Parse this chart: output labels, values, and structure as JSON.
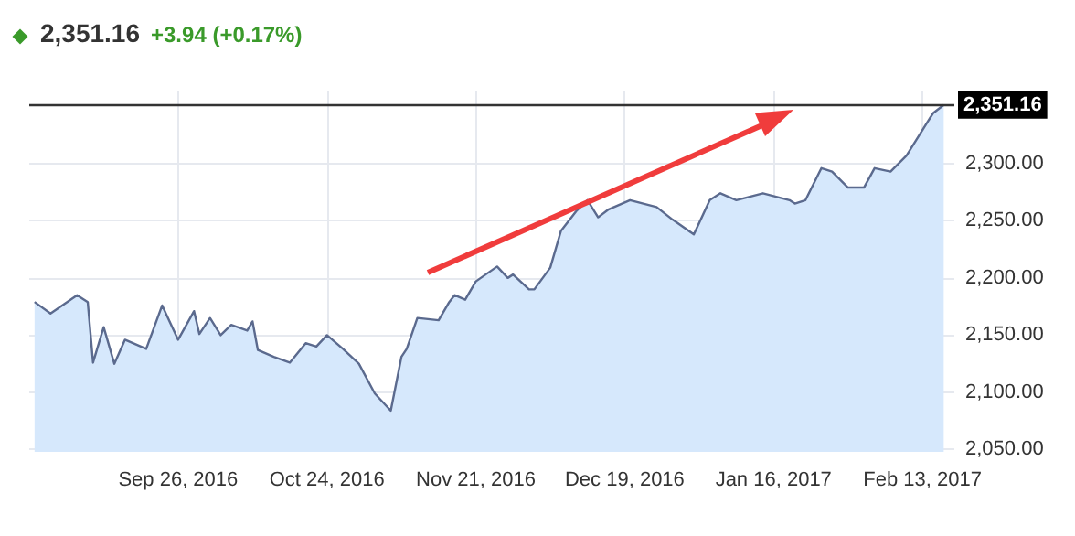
{
  "chart_data": {
    "type": "area",
    "title": "2,351.16",
    "subtitle": "+3.94 (+0.17%)",
    "series": [
      {
        "color": "#5b6a8e",
        "x": [
          "2016-08-30",
          "2016-09-02",
          "2016-09-07",
          "2016-09-09",
          "2016-09-10",
          "2016-09-12",
          "2016-09-14",
          "2016-09-16",
          "2016-09-20",
          "2016-09-23",
          "2016-09-26",
          "2016-09-29",
          "2016-09-30",
          "2016-10-02",
          "2016-10-04",
          "2016-10-06",
          "2016-10-09",
          "2016-10-10",
          "2016-10-11",
          "2016-10-14",
          "2016-10-17",
          "2016-10-20",
          "2016-10-22",
          "2016-10-24",
          "2016-10-27",
          "2016-10-30",
          "2016-11-02",
          "2016-11-05",
          "2016-11-07",
          "2016-11-08",
          "2016-11-10",
          "2016-11-14",
          "2016-11-16",
          "2016-11-17",
          "2016-11-19",
          "2016-11-21",
          "2016-11-25",
          "2016-11-27",
          "2016-11-28",
          "2016-12-01",
          "2016-12-02",
          "2016-12-05",
          "2016-12-07",
          "2016-12-10",
          "2016-12-12",
          "2016-12-14",
          "2016-12-16",
          "2016-12-20",
          "2016-12-25",
          "2016-12-28",
          "2017-01-01",
          "2017-01-04",
          "2017-01-06",
          "2017-01-09",
          "2017-01-14",
          "2017-01-19",
          "2017-01-20",
          "2017-01-22",
          "2017-01-25",
          "2017-01-27",
          "2017-01-30",
          "2017-02-02",
          "2017-02-04",
          "2017-02-07",
          "2017-02-10",
          "2017-02-15",
          "2017-02-17"
        ],
        "values": [
          2179,
          2169,
          2185,
          2179,
          2126,
          2157,
          2125,
          2146,
          2138,
          2176,
          2146,
          2171,
          2151,
          2165,
          2150,
          2159,
          2154,
          2162,
          2137,
          2131,
          2126,
          2143,
          2140,
          2150,
          2138,
          2125,
          2099,
          2084,
          2131,
          2138,
          2165,
          2163,
          2179,
          2185,
          2181,
          2197,
          2210,
          2200,
          2203,
          2190,
          2190,
          2209,
          2241,
          2259,
          2268,
          2253,
          2260,
          2268,
          2262,
          2251,
          2238,
          2268,
          2274,
          2268,
          2274,
          2268,
          2265,
          2268,
          2296,
          2293,
          2279,
          2279,
          2296,
          2293,
          2307,
          2344,
          2351.16
        ]
      }
    ],
    "xlim": [
      "2016-08-29",
      "2017-02-19"
    ],
    "xticks": [
      {
        "value": "2016-09-26",
        "label": "Sep 26, 2016"
      },
      {
        "value": "2016-10-24",
        "label": "Oct 24, 2016"
      },
      {
        "value": "2016-11-21",
        "label": "Nov 21, 2016"
      },
      {
        "value": "2016-12-19",
        "label": "Dec 19, 2016"
      },
      {
        "value": "2017-01-16",
        "label": "Jan 16, 2017"
      },
      {
        "value": "2017-02-13",
        "label": "Feb 13, 2017"
      }
    ],
    "ylim": [
      2048,
      2363
    ],
    "yticks": [
      {
        "value": 2050,
        "label": "2,050.00"
      },
      {
        "value": 2100,
        "label": "2,100.00"
      },
      {
        "value": 2150,
        "label": "2,150.00"
      },
      {
        "value": 2200,
        "label": "2,200.00"
      },
      {
        "value": 2250,
        "label": "2,250.00"
      },
      {
        "value": 2300,
        "label": "2,300.00"
      }
    ],
    "ref_lines": [
      {
        "axis": "y",
        "value": 2351.16,
        "label": "2,351.16",
        "color": "#333333"
      }
    ],
    "grid": true
  }
}
